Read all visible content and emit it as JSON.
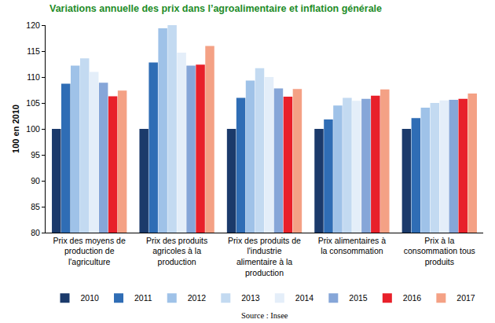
{
  "chart_data": {
    "type": "bar",
    "title": "Variations annuelle des prix dans l’agroalimentaire et inflation générale",
    "y_label": "100 en 2010",
    "annotations": [
      "Source : Insee"
    ],
    "categories": [
      "Prix des moyens de production de l'agriculture",
      "Prix des produits agricoles à la production",
      "Prix des produits de l'industrie alimentaire à la production",
      "Prix alimentaires à la consommation",
      "Prix à la consommation tous produits"
    ],
    "series": [
      {
        "name": "2010",
        "color": "#1b3a6b",
        "values": [
          100,
          100,
          100,
          100,
          100
        ]
      },
      {
        "name": "2011",
        "color": "#2f6db5",
        "values": [
          108.7,
          112.8,
          106,
          101.8,
          102.1
        ]
      },
      {
        "name": "2012",
        "color": "#9fc2e8",
        "values": [
          112.2,
          119.4,
          109.3,
          104.5,
          104.1
        ]
      },
      {
        "name": "2013",
        "color": "#c3daf1",
        "values": [
          113.6,
          120,
          111.7,
          106,
          105
        ]
      },
      {
        "name": "2014",
        "color": "#e4eef9",
        "values": [
          111,
          114.7,
          110,
          105.4,
          105.5
        ]
      },
      {
        "name": "2015",
        "color": "#86a6d8",
        "values": [
          108.9,
          112.2,
          107.8,
          105.8,
          105.6
        ]
      },
      {
        "name": "2016",
        "color": "#e8202a",
        "values": [
          106.3,
          112.4,
          106.2,
          106.4,
          105.8
        ]
      },
      {
        "name": "2017",
        "color": "#f4a185",
        "values": [
          107.4,
          116,
          107.7,
          107.6,
          106.8
        ]
      }
    ],
    "ylim": [
      80,
      120
    ],
    "yticks": [
      80,
      85,
      90,
      95,
      100,
      105,
      110,
      115,
      120
    ],
    "grid": false,
    "legend": "bottom",
    "data_labels": false
  }
}
